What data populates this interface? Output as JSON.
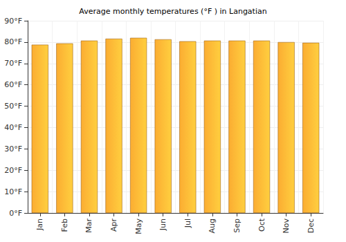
{
  "chart_data": {
    "type": "bar",
    "title": "Average monthly temperatures (°F ) in Langatian",
    "categories": [
      "Jan",
      "Feb",
      "Mar",
      "Apr",
      "May",
      "Jun",
      "Jul",
      "Aug",
      "Sep",
      "Oct",
      "Nov",
      "Dec"
    ],
    "values": [
      78.8,
      79.4,
      80.7,
      81.6,
      82.0,
      81.3,
      80.4,
      80.7,
      80.7,
      80.7,
      80.0,
      79.7
    ],
    "color": "#fbad32",
    "ylim": [
      0,
      90
    ],
    "yticks": [
      {
        "value": 0,
        "label": "0°F"
      },
      {
        "value": 10,
        "label": "10°F"
      },
      {
        "value": 20,
        "label": "20°F"
      },
      {
        "value": 30,
        "label": "30°F"
      },
      {
        "value": 40,
        "label": "40°F"
      },
      {
        "value": 50,
        "label": "50°F"
      },
      {
        "value": 60,
        "label": "60°F"
      },
      {
        "value": 70,
        "label": "70°F"
      },
      {
        "value": 80,
        "label": "80°F"
      },
      {
        "value": 90,
        "label": "90°F"
      }
    ],
    "grid": true
  }
}
